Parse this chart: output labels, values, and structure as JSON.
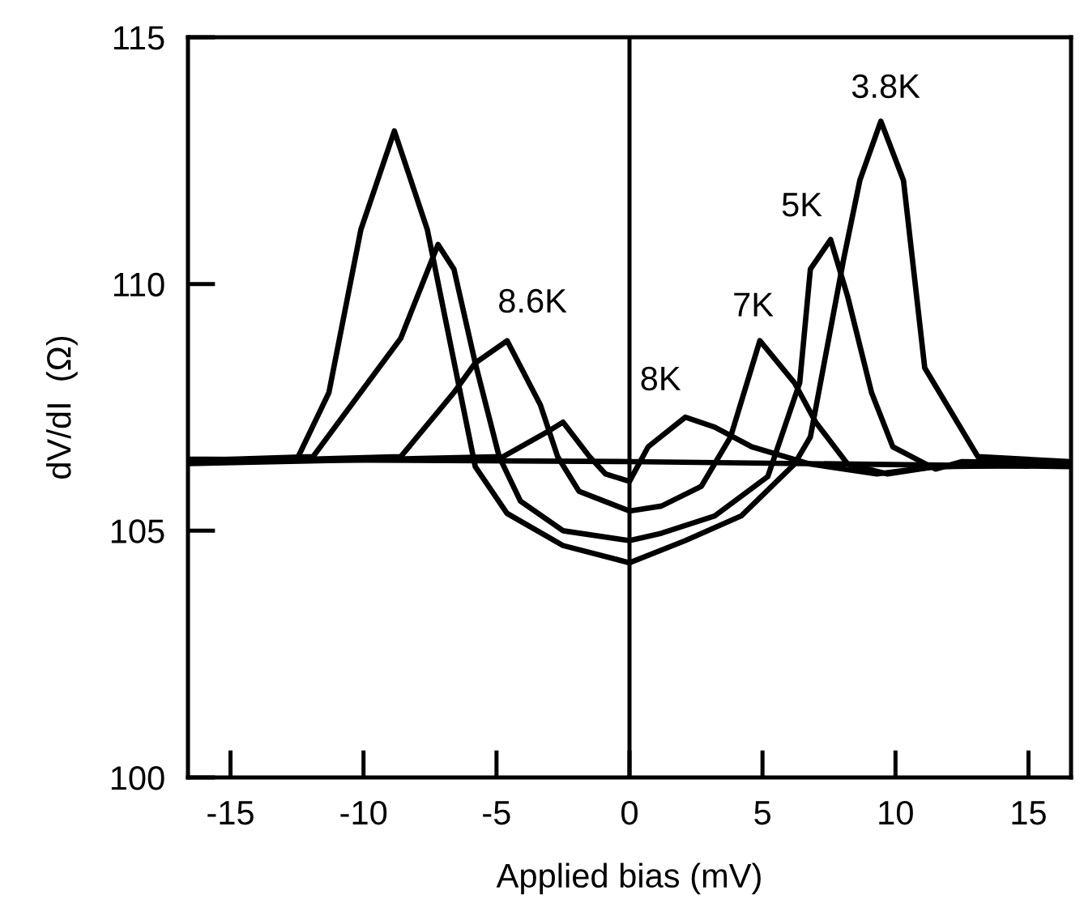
{
  "chart_data": {
    "type": "line",
    "xlabel": "Applied bias (mV)",
    "ylabel": "dV/dI  (Ω)",
    "xlim": [
      -16.6,
      16.6
    ],
    "ylim": [
      100,
      115
    ],
    "xticks": [
      -15,
      -10,
      -5,
      0,
      5,
      10,
      15
    ],
    "yticks": [
      100,
      105,
      110,
      115
    ],
    "grid": false,
    "marker": "none",
    "line_style": "solid",
    "series": [
      {
        "color": "#000000",
        "x": [
          -16.6,
          -12.5,
          -11.3,
          -10.1,
          -8.84,
          -7.6,
          -6.4,
          -5.8,
          -4.6,
          -2.5,
          0,
          2.1,
          4.2,
          6.2,
          6.8,
          8.05,
          8.66,
          9.45,
          10.3,
          11.1,
          13.1,
          16.6
        ],
        "values": [
          106.4,
          106.45,
          107.8,
          111.1,
          113.1,
          111.1,
          107.9,
          106.3,
          105.35,
          104.7,
          104.35,
          104.8,
          105.3,
          106.35,
          106.9,
          110.5,
          112.1,
          113.3,
          112.1,
          108.3,
          106.5,
          106.4
        ]
      },
      {
        "color": "#000000",
        "x": [
          -16.6,
          -11.9,
          -8.6,
          -7.2,
          -6.6,
          -5.8,
          -4.9,
          -4.1,
          -2.5,
          0,
          1.2,
          3.2,
          5.2,
          6.4,
          6.8,
          7.56,
          8.2,
          9.1,
          9.9,
          11.5,
          12.5,
          16.6
        ],
        "values": [
          106.42,
          106.5,
          108.9,
          110.8,
          110.3,
          108.4,
          106.5,
          105.6,
          105.0,
          104.8,
          104.95,
          105.3,
          106.1,
          108.0,
          110.3,
          110.9,
          109.75,
          107.8,
          106.7,
          106.25,
          106.4,
          106.37
        ]
      },
      {
        "color": "#000000",
        "x": [
          -16.6,
          -8.6,
          -6.6,
          -5.8,
          -4.6,
          -3.35,
          -2.7,
          -1.9,
          0,
          1.2,
          2.7,
          3.8,
          4.9,
          6.2,
          7.0,
          8.2,
          9.7,
          11.5,
          16.6
        ],
        "values": [
          106.38,
          106.5,
          107.8,
          108.4,
          108.85,
          107.55,
          106.5,
          105.8,
          105.4,
          105.5,
          105.9,
          106.9,
          108.85,
          108.0,
          107.2,
          106.35,
          106.15,
          106.3,
          106.35
        ]
      },
      {
        "color": "#000000",
        "x": [
          -16.6,
          -4.75,
          -3.1,
          -2.5,
          -1.5,
          -0.9,
          0,
          0.7,
          2.1,
          3.2,
          4.6,
          6.8,
          9.3,
          11.5,
          16.6
        ],
        "values": [
          106.36,
          106.5,
          107.0,
          107.2,
          106.5,
          106.15,
          106.0,
          106.7,
          107.3,
          107.1,
          106.7,
          106.35,
          106.15,
          106.3,
          106.33
        ]
      },
      {
        "color": "#000000",
        "x": [
          -16.6,
          0,
          16.6
        ],
        "values": [
          106.45,
          106.4,
          106.3
        ]
      }
    ],
    "ref_lines": [
      {
        "axis": "x",
        "value": 0,
        "color": "#000000"
      }
    ],
    "annotations": [
      "3.8K",
      "5K",
      "7K",
      "8K",
      "8.6K"
    ]
  }
}
